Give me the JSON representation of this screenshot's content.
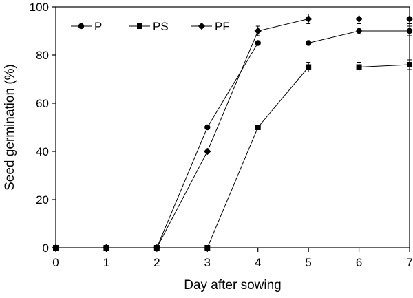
{
  "chart_data": {
    "type": "line",
    "title": "",
    "xlabel": "Day after sowing",
    "ylabel": "Seed germination (%)",
    "xlim": [
      0,
      7
    ],
    "ylim": [
      0,
      100
    ],
    "xticks": [
      0,
      1,
      2,
      3,
      4,
      5,
      6,
      7
    ],
    "yticks": [
      0,
      20,
      40,
      60,
      80,
      100
    ],
    "grid": false,
    "legend_position": "top-left",
    "x": [
      0,
      1,
      2,
      3,
      4,
      5,
      6,
      7
    ],
    "series": [
      {
        "name": "P",
        "marker": "circle",
        "values": [
          0,
          0,
          0,
          50,
          85,
          85,
          90,
          90
        ],
        "errors": [
          0,
          0,
          0,
          0,
          0,
          0,
          0,
          2
        ]
      },
      {
        "name": "PS",
        "marker": "square",
        "values": [
          0,
          0,
          0,
          0,
          50,
          75,
          75,
          76
        ],
        "errors": [
          0,
          0,
          0,
          0,
          1,
          2,
          2,
          2
        ]
      },
      {
        "name": "PF",
        "marker": "diamond",
        "values": [
          0,
          0,
          0,
          40,
          90,
          95,
          95,
          95
        ],
        "errors": [
          0,
          0,
          0,
          0,
          2,
          2,
          2,
          2
        ]
      }
    ],
    "color": "#000000"
  }
}
